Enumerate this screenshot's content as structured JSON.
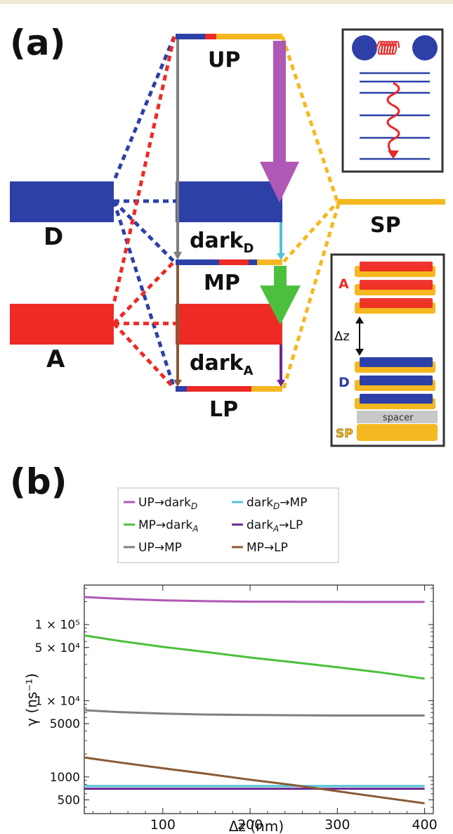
{
  "panel_a": {
    "label": "(a)",
    "levels": {
      "up": "UP",
      "d": "D",
      "sp": "SP",
      "dark_d_main": "dark",
      "dark_d_sub": "D",
      "mp": "MP",
      "a": "A",
      "dark_a_main": "dark",
      "dark_a_sub": "A",
      "lp": "LP"
    },
    "inset_bottom": {
      "a_label": "A",
      "dz_label": "Δz",
      "d_label": "D",
      "spacer_label": "spacer",
      "sp_label": "SP"
    },
    "colors": {
      "donor": "#2c40a8",
      "acceptor": "#ee2a24",
      "sp": "#f5b820",
      "up_dark_arrow": "#b058b6",
      "mp_arrow": "#4cc03c",
      "dark_mp_arrow": "#52c3d8",
      "dark_lp_arrow": "#6b2790",
      "up_mp_arrow": "#7f7f7f",
      "mp_lp_arrow": "#8a5a33"
    }
  },
  "panel_b": {
    "label": "(b)"
  },
  "chart_data": {
    "type": "line",
    "xlabel": "Δz (nm)",
    "ylabel": "γ (ns⁻¹)",
    "x": [
      10,
      400
    ],
    "xlim": [
      10,
      410
    ],
    "x_ticks": [
      100,
      200,
      300,
      400
    ],
    "ylim": [
      330,
      330000
    ],
    "y_scale": "log",
    "y_ticks": [
      {
        "value": 500,
        "label": "500"
      },
      {
        "value": 1000,
        "label": "1000"
      },
      {
        "value": 5000,
        "label": "5000"
      },
      {
        "value": 10000,
        "label": "1 × 10⁴"
      },
      {
        "value": 50000,
        "label": "5 × 10⁴"
      },
      {
        "value": 100000,
        "label": "1 × 10⁵"
      }
    ],
    "legend_position": "top",
    "series": [
      {
        "name": "UP→darkD",
        "legend_main": "UP→dark",
        "legend_sub": "D",
        "legend_tail": "",
        "color": "#b058b6",
        "x": [
          10,
          50,
          100,
          150,
          200,
          250,
          300,
          350,
          400
        ],
        "values": [
          230000,
          218000,
          208000,
          203000,
          200000,
          199000,
          198500,
          198000,
          198000
        ]
      },
      {
        "name": "darkD→MP",
        "legend_main": "dark",
        "legend_sub": "D",
        "legend_tail": "→MP",
        "color": "#52c3d8",
        "x": [
          10,
          400
        ],
        "values": [
          760,
          760
        ]
      },
      {
        "name": "MP→darkA",
        "legend_main": "MP→dark",
        "legend_sub": "A",
        "legend_tail": "",
        "color": "#4cc03c",
        "x": [
          10,
          50,
          100,
          150,
          200,
          250,
          300,
          350,
          400
        ],
        "values": [
          72000,
          61000,
          51000,
          43500,
          37000,
          32000,
          27500,
          23500,
          19500
        ]
      },
      {
        "name": "darkA→LP",
        "legend_main": "dark",
        "legend_sub": "A",
        "legend_tail": "→LP",
        "color": "#6b2790",
        "x": [
          10,
          400
        ],
        "values": [
          700,
          700
        ]
      },
      {
        "name": "UP→MP",
        "legend_main": "UP→MP",
        "legend_sub": "",
        "legend_tail": "",
        "color": "#7f7f7f",
        "x": [
          10,
          50,
          100,
          150,
          200,
          250,
          300,
          350,
          400
        ],
        "values": [
          7500,
          7100,
          6800,
          6600,
          6500,
          6450,
          6400,
          6400,
          6400
        ]
      },
      {
        "name": "MP→LP",
        "legend_main": "MP→LP",
        "legend_sub": "",
        "legend_tail": "",
        "color": "#8a5a33",
        "x": [
          10,
          50,
          100,
          150,
          200,
          250,
          300,
          350,
          400
        ],
        "values": [
          1800,
          1550,
          1300,
          1100,
          920,
          780,
          650,
          540,
          450
        ]
      }
    ]
  }
}
